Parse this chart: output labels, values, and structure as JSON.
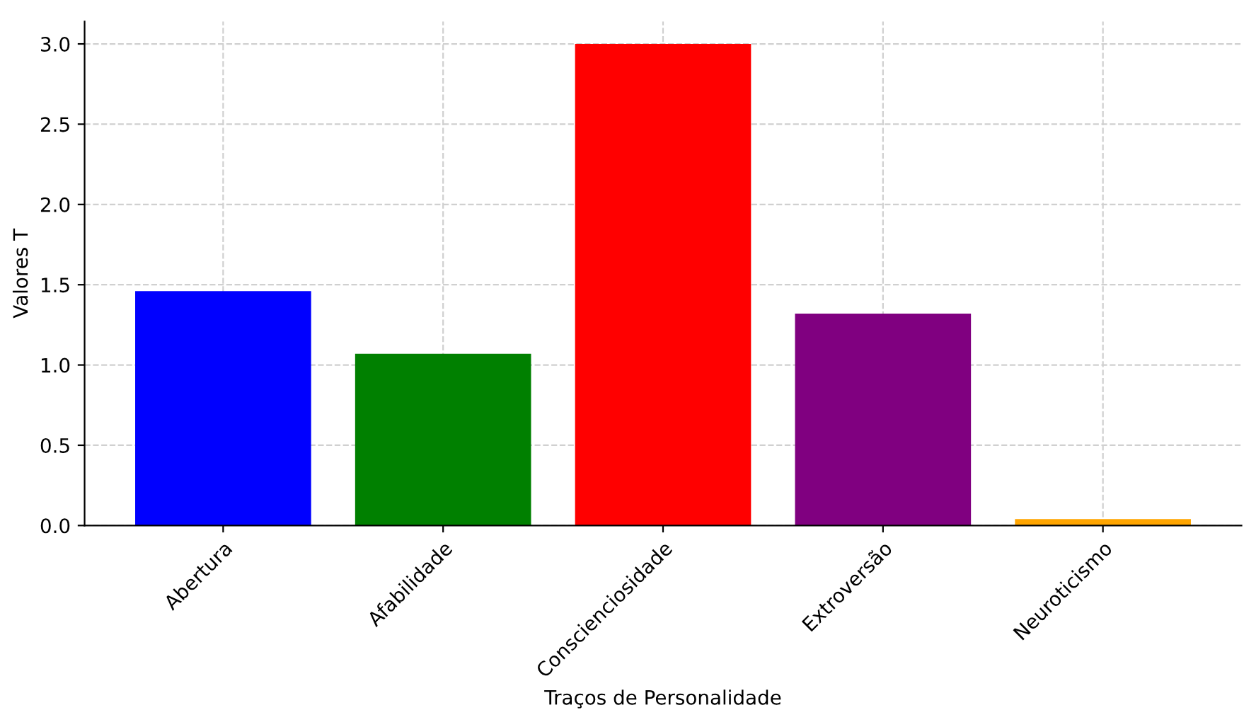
{
  "chart_data": {
    "type": "bar",
    "xlabel": "Traços de Personalidade",
    "ylabel": "Valores T",
    "categories": [
      "Abertura",
      "Afabilidade",
      "Conscienciosidade",
      "Extroversão",
      "Neuroticismo"
    ],
    "values": [
      1.46,
      1.07,
      3.0,
      1.32,
      0.04
    ],
    "colors": [
      "#0000ff",
      "#008000",
      "#ff0000",
      "#800080",
      "#ffa500"
    ],
    "ylim": [
      0,
      3.14
    ],
    "yticks": [
      {
        "value": 0,
        "label": "0.0"
      },
      {
        "value": 0.5,
        "label": "0.5"
      },
      {
        "value": 1,
        "label": "1.0"
      },
      {
        "value": 1.5,
        "label": "1.5"
      },
      {
        "value": 2,
        "label": "2.0"
      },
      {
        "value": 2.5,
        "label": "2.5"
      },
      {
        "value": 3,
        "label": "3.0"
      }
    ],
    "grid": true
  }
}
